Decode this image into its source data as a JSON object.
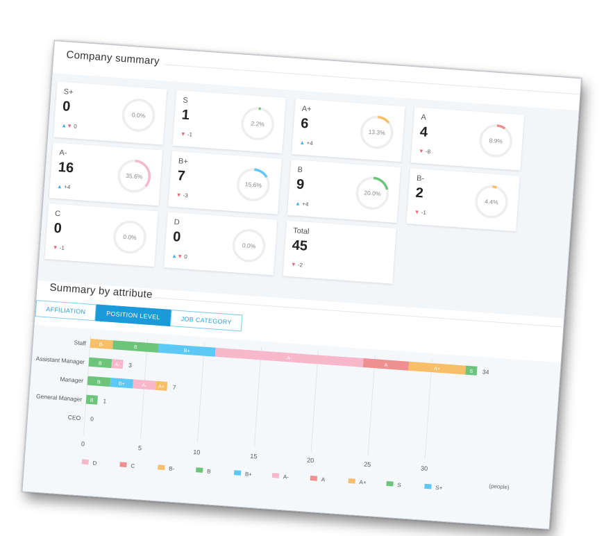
{
  "company_summary": {
    "title": "Company summary",
    "cards": [
      {
        "label": "S+",
        "value": "0",
        "change": "0",
        "dir": "both",
        "percent": "0.0%",
        "fraction": 0,
        "color": "#5bc8f5"
      },
      {
        "label": "S",
        "value": "1",
        "change": "-1",
        "dir": "down",
        "percent": "2.2%",
        "fraction": 0.022,
        "color": "#6cc57a"
      },
      {
        "label": "A+",
        "value": "6",
        "change": "+4",
        "dir": "up",
        "percent": "13.3%",
        "fraction": 0.133,
        "color": "#f7bf68"
      },
      {
        "label": "A",
        "value": "4",
        "change": "-8",
        "dir": "down",
        "percent": "8.9%",
        "fraction": 0.089,
        "color": "#ef8f8f"
      },
      {
        "label": "A-",
        "value": "16",
        "change": "+4",
        "dir": "up",
        "percent": "35.6%",
        "fraction": 0.356,
        "color": "#f7b8cc"
      },
      {
        "label": "B+",
        "value": "7",
        "change": "-3",
        "dir": "down",
        "percent": "15.6%",
        "fraction": 0.156,
        "color": "#5bc8f5"
      },
      {
        "label": "B",
        "value": "9",
        "change": "+4",
        "dir": "up",
        "percent": "20.0%",
        "fraction": 0.2,
        "color": "#6cc57a"
      },
      {
        "label": "B-",
        "value": "2",
        "change": "-1",
        "dir": "down",
        "percent": "4.4%",
        "fraction": 0.044,
        "color": "#f7bf68"
      },
      {
        "label": "C",
        "value": "0",
        "change": "-1",
        "dir": "down",
        "percent": "0.0%",
        "fraction": 0,
        "color": "#ef8f8f"
      },
      {
        "label": "D",
        "value": "0",
        "change": "0",
        "dir": "both",
        "percent": "0.0%",
        "fraction": 0,
        "color": "#f7b8cc"
      },
      {
        "label": "Total",
        "value": "45",
        "change": "-2",
        "dir": "down",
        "percent": "",
        "fraction": null,
        "color": ""
      }
    ]
  },
  "attribute_summary": {
    "title": "Summary by attribute",
    "tabs": [
      {
        "label": "AFFILIATION",
        "active": false
      },
      {
        "label": "POSITION LEVEL",
        "active": true
      },
      {
        "label": "JOB CATEGORY",
        "active": false
      }
    ]
  },
  "chart_data": {
    "type": "bar",
    "orientation": "horizontal-stacked",
    "categories": [
      "Staff",
      "Assistant Manager",
      "Manager",
      "General Manager",
      "CEO"
    ],
    "totals": [
      34,
      3,
      7,
      1,
      0
    ],
    "series": [
      {
        "name": "D",
        "color": "#f7b8cc",
        "values": [
          0,
          0,
          0,
          0,
          0
        ]
      },
      {
        "name": "C",
        "color": "#ef8f8f",
        "values": [
          0,
          0,
          0,
          0,
          0
        ]
      },
      {
        "name": "B-",
        "color": "#f7bf68",
        "values": [
          2,
          0,
          0,
          0,
          0
        ]
      },
      {
        "name": "B",
        "color": "#6cc57a",
        "values": [
          4,
          2,
          2,
          1,
          0
        ]
      },
      {
        "name": "B+",
        "color": "#5bc8f5",
        "values": [
          5,
          0,
          2,
          0,
          0
        ]
      },
      {
        "name": "A-",
        "color": "#f7b8cc",
        "values": [
          13,
          1,
          2,
          0,
          0
        ]
      },
      {
        "name": "A",
        "color": "#ef8f8f",
        "values": [
          4,
          0,
          0,
          0,
          0
        ]
      },
      {
        "name": "A+",
        "color": "#f7bf68",
        "values": [
          5,
          0,
          1,
          0,
          0
        ]
      },
      {
        "name": "S",
        "color": "#6cc57a",
        "values": [
          1,
          0,
          0,
          0,
          0
        ]
      },
      {
        "name": "S+",
        "color": "#5bc8f5",
        "values": [
          0,
          0,
          0,
          0,
          0
        ]
      }
    ],
    "xticks": [
      0,
      5,
      10,
      15,
      20,
      25,
      30
    ],
    "xlim": [
      0,
      35
    ],
    "xunit": "(people)",
    "grid": true,
    "legend_position": "bottom"
  }
}
